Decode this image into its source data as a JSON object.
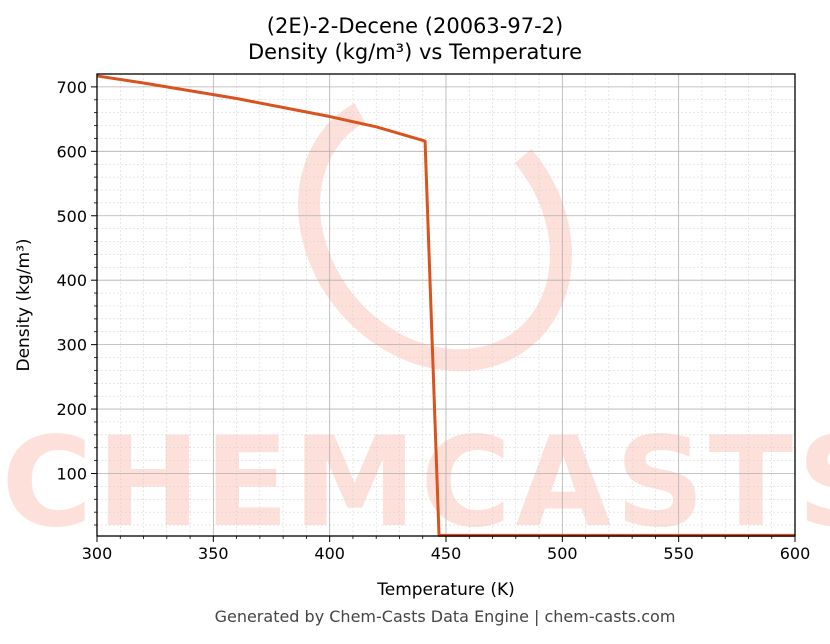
{
  "chart_data": {
    "type": "line",
    "title": "(2E)-2-Decene (20063-97-2)",
    "subtitle": "Density (kg/m³) vs Temperature",
    "xlabel": "Temperature (K)",
    "ylabel": "Density (kg/m³)",
    "xlim": [
      300,
      600
    ],
    "ylim": [
      3,
      720
    ],
    "x_ticks": [
      300,
      350,
      400,
      450,
      500,
      550,
      600
    ],
    "y_ticks": [
      100,
      200,
      300,
      400,
      500,
      600,
      700
    ],
    "grid": true,
    "line_color": "#d9531e",
    "watermark_color": "#fde0da",
    "series": [
      {
        "x": [
          300,
          320,
          340,
          360,
          380,
          400,
          420,
          441,
          447,
          450,
          500,
          550,
          600
        ],
        "values": [
          717,
          706,
          694,
          682,
          668,
          654,
          638,
          616,
          4,
          4,
          4,
          4,
          4
        ]
      }
    ]
  },
  "watermark": {
    "text": "CHEMCASTS"
  },
  "footer": "Generated by Chem-Casts Data Engine | chem-casts.com"
}
